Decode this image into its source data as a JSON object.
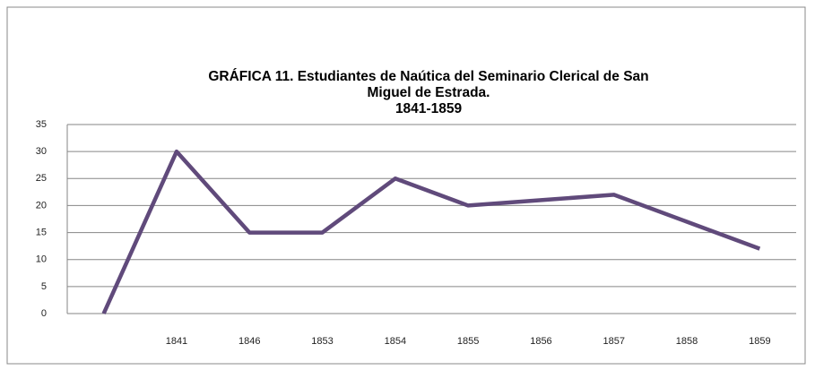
{
  "chart_data": {
    "type": "line",
    "title": [
      "GRÁFICA 11.  Estudiantes de Naútica del Seminario Clerical de San",
      "Miguel de Estrada.",
      "1841-1859"
    ],
    "categories": [
      null,
      "1841",
      "1846",
      "1853",
      "1854",
      "1855",
      "1856",
      "1857",
      "1858",
      "1859"
    ],
    "series": [
      {
        "name": "Estudiantes",
        "color": "#604a7b",
        "values": [
          0,
          30,
          15,
          15,
          25,
          20,
          21,
          22,
          17,
          12
        ]
      }
    ],
    "ylim": [
      0,
      35
    ],
    "yticks": [
      0,
      5,
      10,
      15,
      20,
      25,
      30,
      35
    ],
    "grid": true
  }
}
